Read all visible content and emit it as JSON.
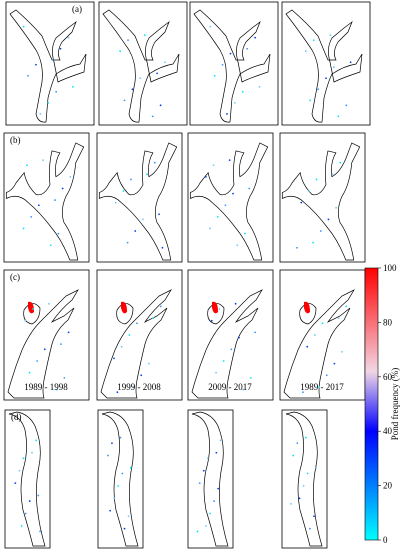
{
  "panels": {
    "labels": [
      "(a)",
      "(b)",
      "(c)",
      "(d)"
    ],
    "periods": [
      "1989 - 1998",
      "1999 - 2008",
      "2009 - 2017",
      "1989 - 2017"
    ]
  },
  "colorbar": {
    "label": "Pond frequency (%)",
    "range": [
      0,
      100
    ],
    "ticks": [
      0,
      20,
      40,
      60,
      80,
      100
    ]
  }
}
